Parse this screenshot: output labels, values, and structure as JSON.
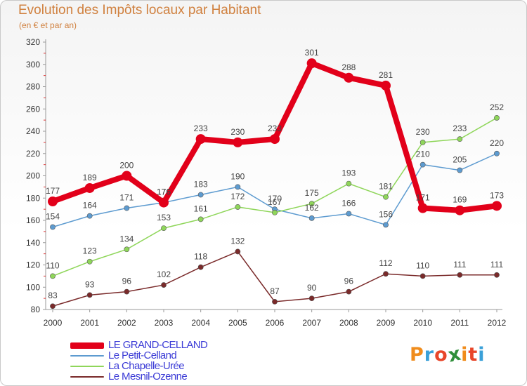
{
  "title": "Evolution des Impôts locaux par Habitant",
  "subtitle": "(en € et par an)",
  "logo": {
    "letters": [
      "P",
      "r",
      "o",
      "x",
      "i",
      "t",
      "i"
    ],
    "colors": [
      "#f08c1c",
      "#3aa0d8",
      "#e8462a",
      "#2f8f3a",
      "#f08c1c",
      "#e8462a",
      "#3aa0d8"
    ]
  },
  "chart_data": {
    "type": "line",
    "title": "Evolution des Impôts locaux par Habitant",
    "subtitle": "(en € et par an)",
    "xlabel": "",
    "ylabel": "",
    "ylim": [
      80,
      320
    ],
    "yticks": [
      "80",
      "100",
      "120",
      "140",
      "160",
      "180",
      "200",
      "220",
      "240",
      "260",
      "280",
      "300",
      "320"
    ],
    "grid": false,
    "legend_position": "bottom-left",
    "categories": [
      "2000",
      "2001",
      "2002",
      "2003",
      "2004",
      "2005",
      "2006",
      "2007",
      "2008",
      "2009",
      "2010",
      "2011",
      "2012"
    ],
    "series": [
      {
        "name": "LE GRAND-CELLAND",
        "color": "#e2001a",
        "emphasis": true,
        "values": [
          177,
          189,
          200,
          176,
          233,
          230,
          233,
          301,
          288,
          281,
          171,
          169,
          173
        ],
        "labels": [
          "177",
          "189",
          "200",
          "176",
          "233",
          "230",
          "233",
          "301",
          "288",
          "281",
          "171",
          "169",
          "173"
        ]
      },
      {
        "name": "Le Petit-Celland",
        "color": "#5d9bd0",
        "emphasis": false,
        "values": [
          154,
          164,
          171,
          176,
          183,
          190,
          170,
          162,
          166,
          156,
          210,
          205,
          220
        ],
        "labels": [
          "154",
          "164",
          "171",
          "176",
          "183",
          "190",
          "170",
          "162",
          "166",
          "156",
          "210",
          "205",
          "220"
        ]
      },
      {
        "name": "La Chapelle-Urée",
        "color": "#8fd65a",
        "emphasis": false,
        "values": [
          110,
          123,
          134,
          153,
          161,
          172,
          167,
          175,
          193,
          181,
          230,
          233,
          252
        ],
        "labels": [
          "110",
          "123",
          "134",
          "153",
          "161",
          "172",
          "167",
          "175",
          "193",
          "181",
          "230",
          "233",
          "252"
        ]
      },
      {
        "name": "Le Mesnil-Ozenne",
        "color": "#7a2a2a",
        "emphasis": false,
        "values": [
          83,
          93,
          96,
          102,
          118,
          132,
          87,
          90,
          96,
          112,
          110,
          111,
          111
        ],
        "labels": [
          "83",
          "93",
          "96",
          "102",
          "118",
          "132",
          "87",
          "90",
          "96",
          "112",
          "110",
          "111",
          "111"
        ]
      }
    ]
  }
}
